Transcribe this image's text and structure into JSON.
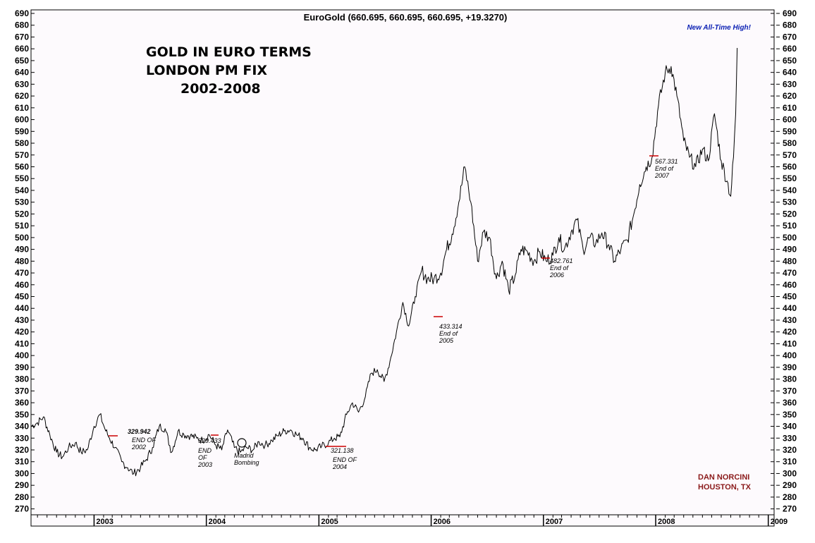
{
  "header": "EuroGold (660.695, 660.695, 660.695, +19.3270)",
  "title_lines": [
    "GOLD IN EURO TERMS",
    "LONDON PM FIX",
    "2002-2008"
  ],
  "ath_label": "New All-Time High!",
  "credit": [
    "DAN NORCINI",
    "HOUSTON, TX"
  ],
  "colors": {
    "line": "#000000",
    "marker": "#cc0000",
    "ath": "#0a1fb3",
    "credit": "#8b1a1a",
    "plot_bg": "#fdfafd"
  },
  "chart_data": {
    "type": "line",
    "ylim": [
      265,
      693
    ],
    "y_ticks": [
      270,
      280,
      290,
      300,
      310,
      320,
      330,
      340,
      350,
      360,
      370,
      380,
      390,
      400,
      410,
      420,
      430,
      440,
      450,
      460,
      470,
      480,
      490,
      500,
      510,
      520,
      530,
      540,
      550,
      560,
      570,
      580,
      590,
      600,
      610,
      620,
      630,
      640,
      650,
      660,
      670,
      680,
      690
    ],
    "x_range": [
      "2002-06-10",
      "2009-01-20"
    ],
    "x_tick_labels": [
      "2003",
      "2004",
      "2005",
      "2006",
      "2007",
      "2008",
      "2009"
    ],
    "x_tick_dates": [
      "2003-01-01",
      "2004-01-01",
      "2005-01-01",
      "2006-01-01",
      "2007-01-01",
      "2008-01-01",
      "2009-01-01"
    ],
    "grid": false,
    "series": [
      {
        "x": [
          "2002-06-10",
          "2002-07-01",
          "2002-07-20",
          "2002-08-10",
          "2002-09-01",
          "2002-09-20",
          "2002-10-10",
          "2002-11-01",
          "2002-11-20",
          "2002-12-10",
          "2003-01-01",
          "2003-01-20",
          "2003-02-05",
          "2003-02-20",
          "2003-03-10",
          "2003-04-01",
          "2003-04-20",
          "2003-05-10",
          "2003-06-01",
          "2003-06-20",
          "2003-07-10",
          "2003-08-01",
          "2003-08-20",
          "2003-09-10",
          "2003-10-01",
          "2003-10-20",
          "2003-11-10",
          "2003-12-01",
          "2003-12-20",
          "2004-01-10",
          "2004-02-01",
          "2004-02-20",
          "2004-03-10",
          "2004-04-01",
          "2004-04-20",
          "2004-05-10",
          "2004-06-01",
          "2004-06-20",
          "2004-07-10",
          "2004-08-01",
          "2004-08-20",
          "2004-09-10",
          "2004-10-01",
          "2004-10-20",
          "2004-11-10",
          "2004-12-01",
          "2004-12-20",
          "2005-01-10",
          "2005-02-01",
          "2005-02-20",
          "2005-03-10",
          "2005-04-01",
          "2005-04-20",
          "2005-05-10",
          "2005-06-01",
          "2005-06-20",
          "2005-07-10",
          "2005-08-01",
          "2005-08-20",
          "2005-09-10",
          "2005-10-01",
          "2005-10-20",
          "2005-11-10",
          "2005-12-01",
          "2005-12-20",
          "2006-01-10",
          "2006-02-01",
          "2006-02-20",
          "2006-03-10",
          "2006-04-01",
          "2006-04-20",
          "2006-05-10",
          "2006-06-01",
          "2006-06-20",
          "2006-07-10",
          "2006-08-01",
          "2006-08-20",
          "2006-09-10",
          "2006-10-01",
          "2006-10-20",
          "2006-11-10",
          "2006-12-01",
          "2006-12-20",
          "2007-01-10",
          "2007-02-01",
          "2007-02-20",
          "2007-03-10",
          "2007-04-01",
          "2007-04-20",
          "2007-05-10",
          "2007-06-01",
          "2007-06-20",
          "2007-07-10",
          "2007-08-01",
          "2007-08-20",
          "2007-09-10",
          "2007-10-01",
          "2007-10-20",
          "2007-11-10",
          "2007-12-01",
          "2007-12-20",
          "2008-01-10",
          "2008-02-01",
          "2008-02-20",
          "2008-03-10",
          "2008-04-01",
          "2008-04-20",
          "2008-05-10",
          "2008-06-01",
          "2008-06-20",
          "2008-07-10",
          "2008-08-01",
          "2008-08-20",
          "2008-09-01",
          "2008-09-10",
          "2008-09-17",
          "2008-09-22"
        ],
        "values": [
          340,
          343,
          348,
          333,
          318,
          314,
          322,
          326,
          318,
          320,
          340,
          350,
          338,
          330,
          322,
          310,
          305,
          300,
          305,
          312,
          322,
          340,
          338,
          318,
          336,
          333,
          332,
          330,
          328,
          333,
          324,
          320,
          337,
          322,
          318,
          322,
          320,
          327,
          324,
          328,
          332,
          336,
          337,
          333,
          330,
          322,
          320,
          323,
          326,
          330,
          331,
          350,
          360,
          352,
          365,
          385,
          388,
          378,
          395,
          420,
          445,
          425,
          450,
          472,
          465,
          465,
          470,
          490,
          503,
          530,
          560,
          530,
          480,
          505,
          500,
          465,
          480,
          455,
          468,
          490,
          488,
          480,
          488,
          480,
          485,
          500,
          490,
          505,
          515,
          490,
          500,
          495,
          504,
          494,
          480,
          490,
          498,
          518,
          545,
          560,
          568,
          612,
          640,
          645,
          620,
          582,
          568,
          560,
          575,
          565,
          605,
          565,
          548,
          535,
          568,
          605,
          660.695
        ]
      }
    ],
    "annotations": [
      {
        "value": "329.942",
        "text": [
          "END OF",
          "2002"
        ]
      },
      {
        "value": "329.433",
        "text": [
          "END",
          "OF",
          "2003"
        ]
      },
      {
        "value": "",
        "text": [
          "Madrid",
          "Bombing"
        ]
      },
      {
        "value": "321.138",
        "text": [
          "END OF",
          "2004"
        ]
      },
      {
        "value": "433.314",
        "text": [
          "End of",
          "2005"
        ]
      },
      {
        "value": "482.761",
        "text": [
          "End of",
          "2006"
        ]
      },
      {
        "value": "567.331",
        "text": [
          "End of",
          "2007"
        ]
      }
    ]
  }
}
